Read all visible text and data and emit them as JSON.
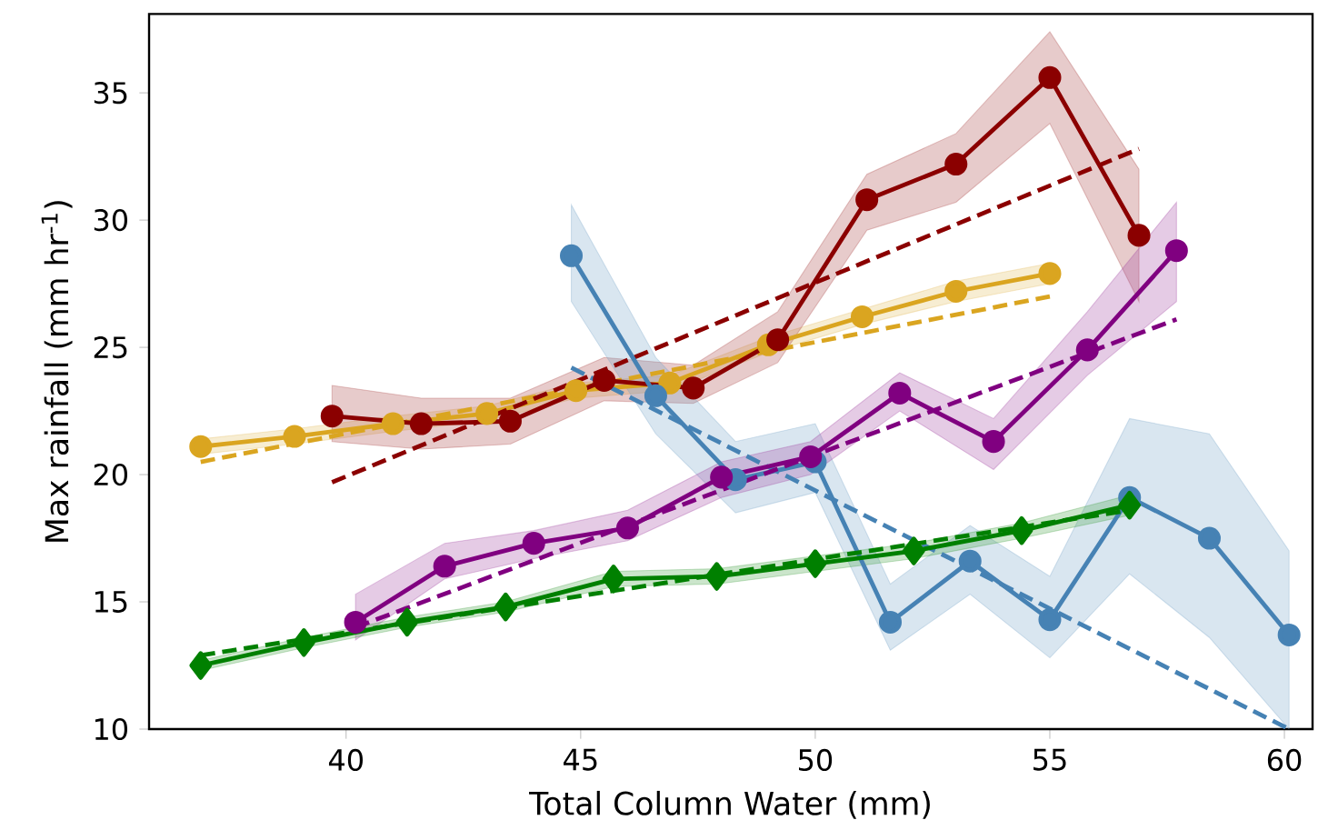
{
  "chart_data": {
    "type": "line",
    "xlabel": "Total Column Water (mm)",
    "ylabel": "Max rainfall (mm hr$^{-1}$)",
    "xlim": [
      35.8,
      60.6
    ],
    "ylim": [
      10,
      38.1
    ],
    "xticks": [
      40,
      45,
      50,
      55,
      60
    ],
    "yticks": [
      10,
      15,
      20,
      25,
      30,
      35
    ],
    "grid": false,
    "legend": false,
    "series": [
      {
        "type": "line",
        "color": "#daa520",
        "marker": "circle",
        "line_style": "solid",
        "x": [
          36.9,
          38.9,
          41,
          43,
          44.9,
          46.9,
          49,
          51,
          53,
          55
        ],
        "values": [
          21.1,
          21.5,
          22,
          22.4,
          23.3,
          23.6,
          25.1,
          26.2,
          27.2,
          27.9
        ],
        "lower": [
          20.8,
          21.2,
          21.7,
          22.1,
          23.0,
          23.3,
          24.8,
          25.9,
          26.8,
          27.5
        ],
        "upper": [
          21.4,
          21.8,
          22.3,
          22.7,
          23.6,
          23.9,
          25.4,
          26.5,
          27.6,
          28.3
        ]
      },
      {
        "type": "line",
        "color": "#daa520",
        "marker": "none",
        "line_style": "dashed",
        "x": [
          36.9,
          55
        ],
        "values": [
          20.5,
          27.0
        ]
      },
      {
        "type": "line",
        "color": "#8b0000",
        "marker": "circle",
        "line_style": "solid",
        "x": [
          39.7,
          41.6,
          43.5,
          45.5,
          47.4,
          49.2,
          51.1,
          53,
          55,
          56.9
        ],
        "values": [
          22.3,
          22.0,
          22.1,
          23.7,
          23.4,
          25.3,
          30.8,
          32.2,
          35.6,
          29.4
        ],
        "lower": [
          21.3,
          21.0,
          21.2,
          22.9,
          22.8,
          24.4,
          29.6,
          30.7,
          33.8,
          26.8
        ],
        "upper": [
          23.5,
          23.0,
          23.0,
          24.6,
          24.3,
          26.4,
          31.8,
          33.4,
          37.4,
          32.0
        ]
      },
      {
        "type": "line",
        "color": "#8b0000",
        "marker": "none",
        "line_style": "dashed",
        "x": [
          39.7,
          56.9
        ],
        "values": [
          19.7,
          32.8
        ]
      },
      {
        "type": "line",
        "color": "#4682b4",
        "marker": "circle",
        "line_style": "solid",
        "x": [
          44.8,
          46.6,
          48.3,
          50,
          51.6,
          53.3,
          55,
          56.7,
          58.4,
          60.1
        ],
        "values": [
          28.6,
          23.1,
          19.8,
          20.5,
          14.2,
          16.6,
          14.3,
          19.1,
          17.5,
          13.7
        ],
        "lower": [
          26.8,
          21.6,
          18.5,
          19.3,
          13.1,
          15.3,
          12.8,
          16.1,
          13.6,
          10.0
        ],
        "upper": [
          30.6,
          24.6,
          21.3,
          22.0,
          15.7,
          18.0,
          16.0,
          22.2,
          21.6,
          17.0
        ]
      },
      {
        "type": "line",
        "color": "#4682b4",
        "marker": "none",
        "line_style": "dashed",
        "x": [
          44.8,
          60.1
        ],
        "values": [
          24.2,
          10.0
        ]
      },
      {
        "type": "line",
        "color": "#800080",
        "marker": "circle",
        "line_style": "solid",
        "x": [
          40.2,
          42.1,
          44,
          46,
          48,
          49.9,
          51.8,
          53.8,
          55.8,
          57.7
        ],
        "values": [
          14.2,
          16.4,
          17.3,
          17.9,
          19.9,
          20.7,
          23.2,
          21.3,
          24.9,
          28.8
        ],
        "lower": [
          13.5,
          15.9,
          16.7,
          17.4,
          19.1,
          20.0,
          22.5,
          20.2,
          23.9,
          26.8
        ],
        "upper": [
          15.3,
          17.3,
          17.8,
          18.6,
          20.5,
          21.3,
          24.0,
          22.2,
          26.4,
          30.7
        ]
      },
      {
        "type": "line",
        "color": "#800080",
        "marker": "none",
        "line_style": "dashed",
        "x": [
          40.2,
          57.7
        ],
        "values": [
          14.0,
          26.1
        ]
      },
      {
        "type": "line",
        "color": "#008000",
        "marker": "diamond",
        "line_style": "solid",
        "x": [
          36.9,
          39.1,
          41.3,
          43.4,
          45.7,
          47.9,
          50,
          52.1,
          54.4,
          56.7
        ],
        "values": [
          12.5,
          13.4,
          14.2,
          14.8,
          15.9,
          16.0,
          16.5,
          17.0,
          17.8,
          18.8
        ],
        "lower": [
          12.3,
          13.2,
          14.0,
          14.6,
          15.6,
          15.7,
          16.2,
          16.7,
          17.5,
          18.4
        ],
        "upper": [
          12.7,
          13.6,
          14.4,
          15.0,
          16.2,
          16.3,
          16.8,
          17.3,
          18.1,
          19.2
        ]
      },
      {
        "type": "line",
        "color": "#008000",
        "marker": "none",
        "line_style": "dashed",
        "x": [
          36.9,
          56.7
        ],
        "values": [
          12.9,
          18.6
        ]
      }
    ]
  }
}
